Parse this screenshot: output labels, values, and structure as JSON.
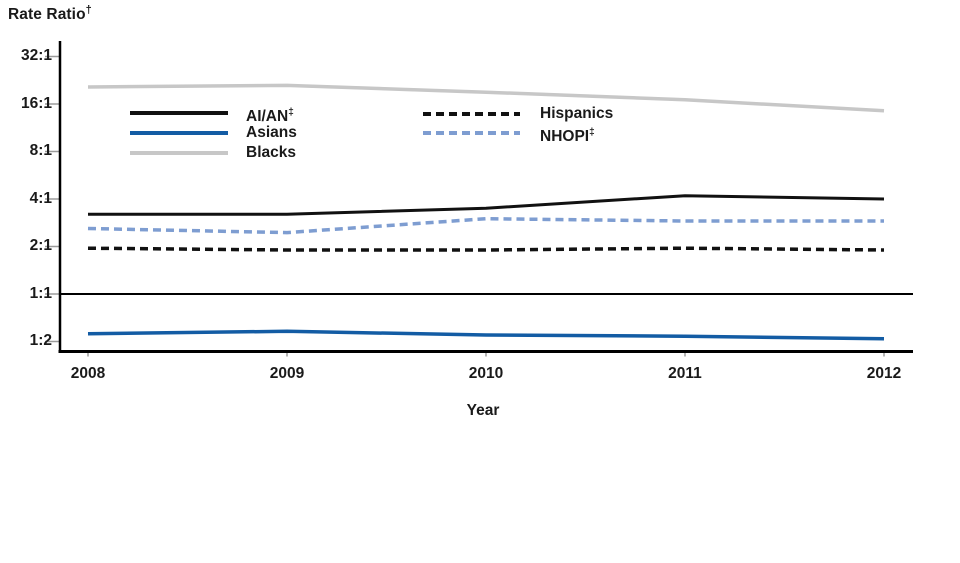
{
  "title": {
    "text": "Rate Ratio",
    "sup": "†"
  },
  "axes": {
    "xlabel": "Year",
    "x_tick_labels": [
      "2008",
      "2009",
      "2010",
      "2011",
      "2012"
    ],
    "y_tick_labels": [
      "32:1",
      "16:1",
      "8:1",
      "4:1",
      "2:1",
      "1:1",
      "1:2"
    ]
  },
  "colors": {
    "axis": "#000000",
    "tick": "#9a9a9a",
    "black_series": "#111111",
    "blue_series": "#135ca4",
    "gray_series": "#c7c7c7",
    "light_blue_series": "#7e9dd1"
  },
  "legend": {
    "left": [
      {
        "label": "AI/AN",
        "sup": "‡",
        "color": "#111111",
        "dashed": false
      },
      {
        "label": "Asians",
        "sup": "",
        "color": "#135ca4",
        "dashed": false
      },
      {
        "label": "Blacks",
        "sup": "",
        "color": "#c7c7c7",
        "dashed": false
      }
    ],
    "right": [
      {
        "label": "Hispanics",
        "sup": "",
        "color": "#111111",
        "dashed": true
      },
      {
        "label": "NHOPI",
        "sup": "‡",
        "color": "#7e9dd1",
        "dashed": true
      }
    ]
  },
  "chart_data": {
    "type": "line",
    "title": "Rate Ratio†",
    "xlabel": "Year",
    "ylabel": "Rate Ratio",
    "x": [
      2008,
      2009,
      2010,
      2011,
      2012
    ],
    "y_scale": "log2",
    "y_tick_values": [
      32,
      16,
      8,
      4,
      2,
      1,
      0.5
    ],
    "y_tick_labels": [
      "32:1",
      "16:1",
      "8:1",
      "4:1",
      "2:1",
      "1:1",
      "1:2"
    ],
    "reference_line": 1,
    "legend_position": "top-inside",
    "grid": false,
    "series": [
      {
        "name": "Blacks",
        "values": [
          20.5,
          21.0,
          19.0,
          17.0,
          14.5
        ],
        "color": "#c7c7c7",
        "style": "solid",
        "width": 3.5
      },
      {
        "name": "Asians",
        "values": [
          0.56,
          0.58,
          0.55,
          0.54,
          0.52
        ],
        "color": "#135ca4",
        "style": "solid",
        "width": 3.5
      },
      {
        "name": "NHOPI‡",
        "values": [
          2.6,
          2.45,
          3.0,
          2.9,
          2.9
        ],
        "color": "#7e9dd1",
        "style": "dashed",
        "width": 3.5
      },
      {
        "name": "Hispanics",
        "values": [
          1.95,
          1.9,
          1.9,
          1.95,
          1.9
        ],
        "color": "#111111",
        "style": "dashed",
        "width": 3.5
      },
      {
        "name": "AI/AN‡",
        "values": [
          3.2,
          3.2,
          3.5,
          4.2,
          4.0
        ],
        "color": "#111111",
        "style": "solid",
        "width": 3.0
      }
    ]
  },
  "layout_geometry_note": ""
}
